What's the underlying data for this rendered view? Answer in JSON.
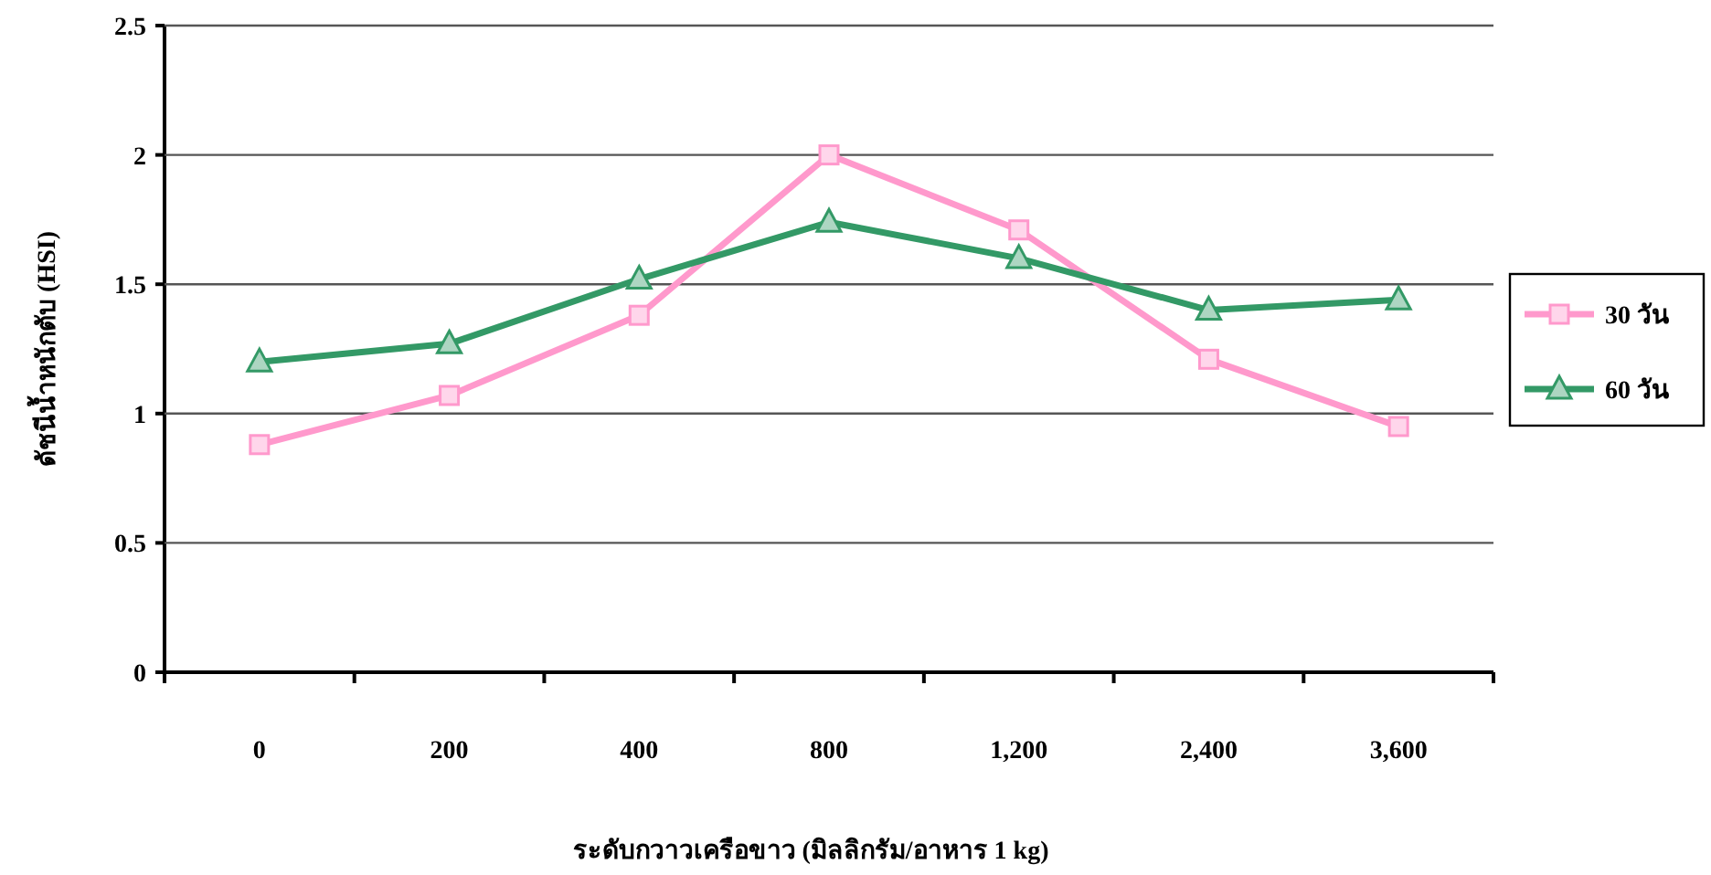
{
  "chart_data": {
    "type": "line",
    "xlabel": "ระดับกวาวเครือขาว (มิลลิกรัม/อาหาร 1 kg)",
    "ylabel": "ดัชนีน้ำหนักตับ (HSI)",
    "categories": [
      "0",
      "200",
      "400",
      "800",
      "1,200",
      "2,400",
      "3,600"
    ],
    "series": [
      {
        "name": "30 วัน",
        "color": "#ff99cc",
        "marker": "square",
        "values": [
          0.88,
          1.07,
          1.38,
          2.0,
          1.71,
          1.21,
          0.95
        ]
      },
      {
        "name": "60 วัน",
        "color": "#339966",
        "marker": "triangle",
        "values": [
          1.2,
          1.27,
          1.52,
          1.74,
          1.6,
          1.4,
          1.44
        ]
      }
    ],
    "ylim": [
      0,
      2.5
    ],
    "yticks": [
      0,
      0.5,
      1,
      1.5,
      2,
      2.5
    ],
    "grid": "y",
    "legend": "right",
    "line_style": "solid"
  }
}
